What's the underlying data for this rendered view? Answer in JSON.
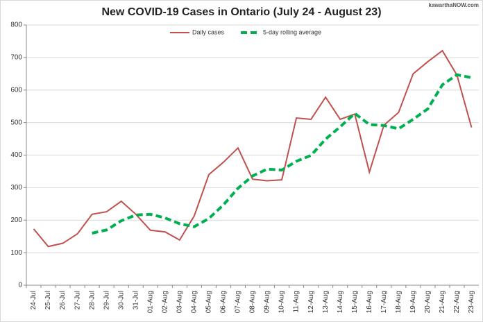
{
  "chart_data": {
    "type": "line",
    "title": "New COVID-19 Cases in Ontario (July 24 - August 23)",
    "watermark": "kawarthaNOW.com",
    "categories": [
      "24-Jul",
      "25-Jul",
      "26-Jul",
      "27-Jul",
      "28-Jul",
      "29-Jul",
      "30-Jul",
      "31-Jul",
      "01-Aug",
      "02-Aug",
      "03-Aug",
      "04-Aug",
      "05-Aug",
      "06-Aug",
      "07-Aug",
      "08-Aug",
      "09-Aug",
      "10-Aug",
      "11-Aug",
      "12-Aug",
      "13-Aug",
      "14-Aug",
      "15-Aug",
      "16-Aug",
      "17-Aug",
      "18-Aug",
      "19-Aug",
      "20-Aug",
      "21-Aug",
      "22-Aug",
      "23-Aug"
    ],
    "series": [
      {
        "name": "Daily cases",
        "color": "#c0504d",
        "dashed": false,
        "values": [
          173,
          119,
          129,
          158,
          218,
          226,
          258,
          218,
          169,
          164,
          139,
          213,
          340,
          378,
          422,
          326,
          321,
          324,
          514,
          510,
          578,
          510,
          526,
          348,
          492,
          531,
          650,
          687,
          721,
          646,
          485
        ]
      },
      {
        "name": "5-day rolling average",
        "color": "#00b050",
        "dashed": true,
        "values": [
          null,
          null,
          null,
          null,
          160,
          170,
          198,
          216,
          218,
          207,
          189,
          180,
          205,
          247,
          298,
          336,
          357,
          354,
          381,
          399,
          449,
          487,
          528,
          494,
          491,
          481,
          510,
          542,
          616,
          647,
          638
        ]
      }
    ],
    "ylim": [
      0,
      800
    ],
    "yticks": [
      0,
      100,
      200,
      300,
      400,
      500,
      600,
      700,
      800
    ],
    "grid": true,
    "legend": "top"
  }
}
